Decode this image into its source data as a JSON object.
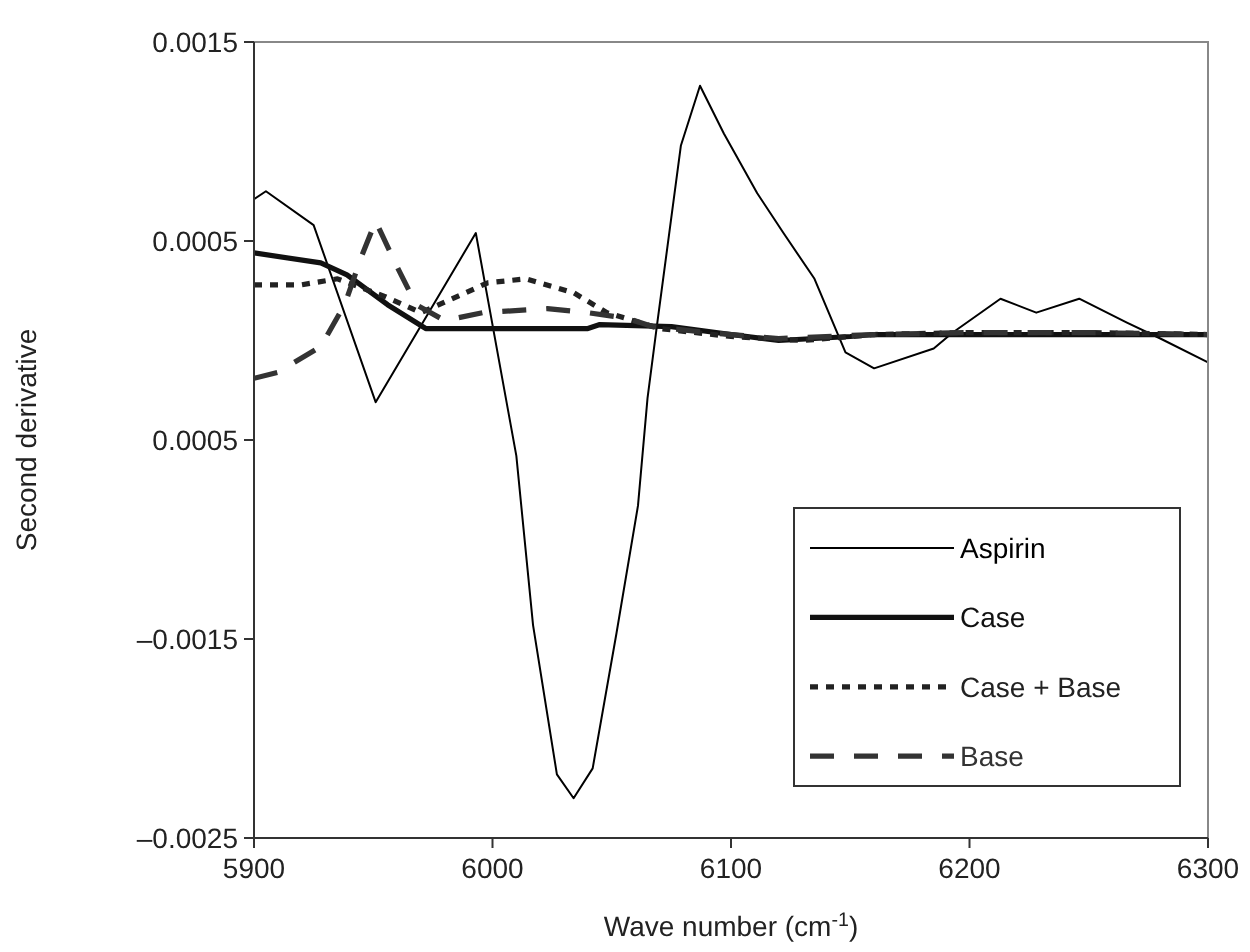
{
  "chart_data": {
    "type": "line",
    "xlabel": "Wave number (cm$^{-1}$)",
    "ylabel": "Second derivative",
    "xlim": [
      5900,
      6300
    ],
    "xticks": [
      5900,
      6000,
      6100,
      6200,
      6300
    ],
    "ylim": [
      -0.0025,
      0.0015
    ],
    "yticks": [
      {
        "value": -0.0025,
        "label": "–0.0025"
      },
      {
        "value": -0.0015,
        "label": "–0.0015"
      },
      {
        "value": -0.0005,
        "label": "0.0005"
      },
      {
        "value": 0.0005,
        "label": "0.0005"
      },
      {
        "value": 0.0015,
        "label": "0.0015"
      }
    ],
    "grid": false,
    "legend": "bottom right",
    "marker": "none",
    "series": [
      {
        "name": "Aspirin",
        "color": "#000000",
        "line_style": "solid",
        "x": [
          5900,
          5905,
          5925,
          5951,
          5993,
          6010,
          6017,
          6027,
          6034,
          6042,
          6052,
          6061,
          6065,
          6069,
          6079,
          6087,
          6097,
          6111,
          6122,
          6135,
          6148,
          6160,
          6185,
          6193,
          6213,
          6228,
          6246,
          6266,
          6280,
          6300
        ],
        "values": [
          0.00071,
          0.00075,
          0.00058,
          -0.00031,
          0.00054,
          -0.00058,
          -0.00143,
          -0.00218,
          -0.0023,
          -0.00215,
          -0.00147,
          -0.00083,
          -0.00029,
          8e-05,
          0.00098,
          0.00128,
          0.00104,
          0.00074,
          0.00054,
          0.00031,
          -6e-05,
          -0.00014,
          -4e-05,
          4e-05,
          0.00021,
          0.00014,
          0.00021,
          9e-05,
          1e-05,
          -0.00011
        ]
      },
      {
        "name": "Case",
        "color": "#111111",
        "line_style": "solid",
        "x": [
          5900,
          5928,
          5939,
          5956,
          5972,
          6040,
          6045,
          6075,
          6100,
          6120,
          6150,
          6160,
          6300
        ],
        "values": [
          0.00044,
          0.00039,
          0.00033,
          0.00018,
          6e-05,
          6e-05,
          8e-05,
          7e-05,
          3e-05,
          0.0,
          2e-05,
          3e-05,
          3e-05
        ]
      },
      {
        "name": "Case + Base",
        "color": "#222222",
        "line_style": "dotted",
        "x": [
          5900,
          5920,
          5935,
          5955,
          5970,
          5998,
          6014,
          6034,
          6048,
          6070,
          6100,
          6130,
          6160,
          6200,
          6250,
          6300
        ],
        "values": [
          0.00028,
          0.00028,
          0.00031,
          0.00022,
          0.00014,
          0.00029,
          0.00031,
          0.00024,
          0.00014,
          6e-05,
          2e-05,
          0.0,
          3e-05,
          4e-05,
          4e-05,
          3e-05
        ]
      },
      {
        "name": "Base",
        "color": "#333333",
        "line_style": "dashed",
        "x": [
          5900,
          5910,
          5928,
          5938,
          5945,
          5951,
          5960,
          5968,
          5980,
          5996,
          6023,
          6040,
          6057,
          6067,
          6090,
          6120,
          6160,
          6200,
          6250,
          6300
        ],
        "values": [
          -0.00019,
          -0.00016,
          -3e-05,
          0.00018,
          0.00042,
          0.0006,
          0.00037,
          0.00018,
          0.0001,
          0.00014,
          0.00016,
          0.00014,
          0.00011,
          7e-05,
          4e-05,
          1e-05,
          3e-05,
          4e-05,
          4e-05,
          3e-05
        ]
      }
    ]
  }
}
